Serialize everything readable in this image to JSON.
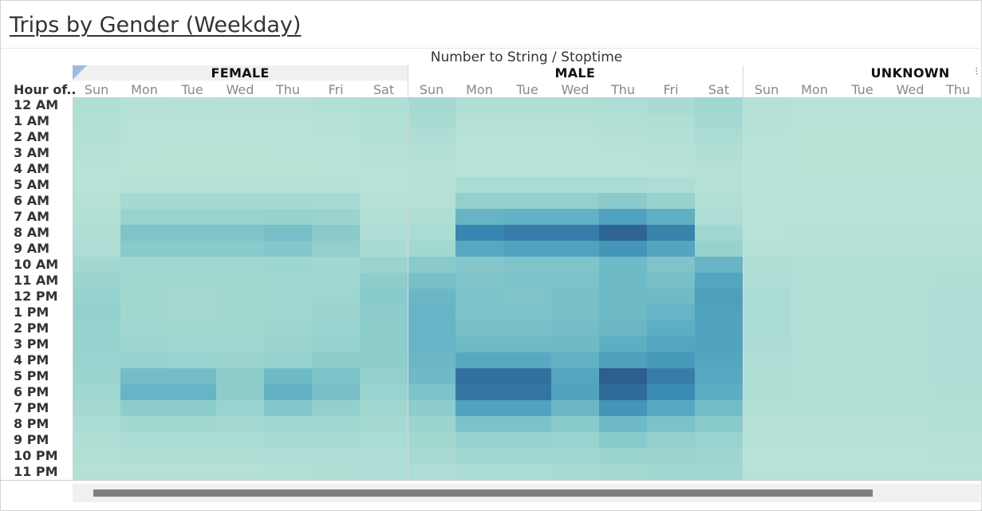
{
  "title": "Trips by Gender (Weekday)",
  "super_header": "Number to String / Stoptime",
  "row_header": "Hour of..",
  "colors": {
    "low": "#bce4d8",
    "high": "#2b5a8a"
  },
  "chart_data": {
    "type": "heatmap",
    "title": "Trips by Gender (Weekday)",
    "column_header": "Number to String / Stoptime",
    "row_header": "Hour of..",
    "groups": [
      {
        "name": "FEMALE",
        "days": [
          "Sun",
          "Mon",
          "Tue",
          "Wed",
          "Thu",
          "Fri",
          "Sat"
        ]
      },
      {
        "name": "MALE",
        "days": [
          "Sun",
          "Mon",
          "Tue",
          "Wed",
          "Thu",
          "Fri",
          "Sat"
        ]
      },
      {
        "name": "UNKNOWN",
        "days": [
          "Sun",
          "Mon",
          "Tue",
          "Wed",
          "Thu"
        ]
      }
    ],
    "hours": [
      "12 AM",
      "1 AM",
      "2 AM",
      "3 AM",
      "4 AM",
      "5 AM",
      "6 AM",
      "7 AM",
      "8 AM",
      "9 AM",
      "10 AM",
      "11 AM",
      "12 PM",
      "1 PM",
      "2 PM",
      "3 PM",
      "4 PM",
      "5 PM",
      "6 PM",
      "7 PM",
      "8 PM",
      "9 PM",
      "10 PM",
      "11 PM"
    ],
    "color_scale": {
      "low": "#bce4d8",
      "high": "#2b5a8a"
    },
    "values": [
      [
        0.1,
        0.06,
        0.05,
        0.06,
        0.06,
        0.07,
        0.1,
        0.18,
        0.1,
        0.1,
        0.1,
        0.12,
        0.15,
        0.22,
        0.06,
        0.03,
        0.03,
        0.03,
        0.03
      ],
      [
        0.08,
        0.04,
        0.03,
        0.03,
        0.04,
        0.05,
        0.08,
        0.15,
        0.06,
        0.06,
        0.06,
        0.08,
        0.1,
        0.18,
        0.05,
        0.02,
        0.02,
        0.02,
        0.02
      ],
      [
        0.07,
        0.03,
        0.02,
        0.02,
        0.03,
        0.04,
        0.07,
        0.12,
        0.04,
        0.04,
        0.04,
        0.06,
        0.07,
        0.14,
        0.04,
        0.02,
        0.02,
        0.02,
        0.02
      ],
      [
        0.05,
        0.02,
        0.02,
        0.02,
        0.02,
        0.03,
        0.05,
        0.08,
        0.03,
        0.03,
        0.03,
        0.04,
        0.05,
        0.1,
        0.03,
        0.02,
        0.02,
        0.02,
        0.02
      ],
      [
        0.04,
        0.02,
        0.02,
        0.02,
        0.02,
        0.02,
        0.04,
        0.05,
        0.03,
        0.03,
        0.03,
        0.03,
        0.04,
        0.06,
        0.03,
        0.02,
        0.02,
        0.02,
        0.02
      ],
      [
        0.04,
        0.06,
        0.06,
        0.06,
        0.06,
        0.06,
        0.04,
        0.05,
        0.14,
        0.14,
        0.14,
        0.14,
        0.12,
        0.06,
        0.03,
        0.03,
        0.03,
        0.03,
        0.03
      ],
      [
        0.05,
        0.18,
        0.18,
        0.18,
        0.18,
        0.16,
        0.05,
        0.06,
        0.32,
        0.32,
        0.32,
        0.35,
        0.3,
        0.08,
        0.03,
        0.04,
        0.04,
        0.04,
        0.04
      ],
      [
        0.07,
        0.28,
        0.28,
        0.28,
        0.3,
        0.26,
        0.07,
        0.1,
        0.52,
        0.54,
        0.54,
        0.64,
        0.55,
        0.12,
        0.03,
        0.04,
        0.04,
        0.04,
        0.04
      ],
      [
        0.1,
        0.4,
        0.4,
        0.4,
        0.44,
        0.36,
        0.12,
        0.14,
        0.8,
        0.84,
        0.84,
        0.95,
        0.82,
        0.22,
        0.04,
        0.05,
        0.05,
        0.05,
        0.05
      ],
      [
        0.12,
        0.36,
        0.36,
        0.36,
        0.38,
        0.32,
        0.15,
        0.2,
        0.6,
        0.64,
        0.64,
        0.72,
        0.62,
        0.3,
        0.06,
        0.06,
        0.06,
        0.06,
        0.06
      ],
      [
        0.2,
        0.22,
        0.22,
        0.22,
        0.24,
        0.22,
        0.26,
        0.36,
        0.38,
        0.4,
        0.4,
        0.48,
        0.4,
        0.52,
        0.1,
        0.07,
        0.07,
        0.07,
        0.08
      ],
      [
        0.26,
        0.2,
        0.2,
        0.2,
        0.22,
        0.22,
        0.34,
        0.44,
        0.4,
        0.42,
        0.42,
        0.48,
        0.44,
        0.62,
        0.12,
        0.08,
        0.08,
        0.08,
        0.1
      ],
      [
        0.3,
        0.2,
        0.18,
        0.2,
        0.22,
        0.24,
        0.36,
        0.5,
        0.42,
        0.4,
        0.44,
        0.48,
        0.48,
        0.66,
        0.14,
        0.09,
        0.09,
        0.09,
        0.12
      ],
      [
        0.32,
        0.2,
        0.18,
        0.2,
        0.22,
        0.26,
        0.34,
        0.52,
        0.42,
        0.42,
        0.44,
        0.48,
        0.52,
        0.64,
        0.14,
        0.09,
        0.09,
        0.09,
        0.12
      ],
      [
        0.3,
        0.22,
        0.2,
        0.2,
        0.24,
        0.28,
        0.34,
        0.52,
        0.44,
        0.44,
        0.46,
        0.5,
        0.56,
        0.64,
        0.14,
        0.09,
        0.09,
        0.09,
        0.12
      ],
      [
        0.3,
        0.24,
        0.22,
        0.22,
        0.26,
        0.3,
        0.34,
        0.52,
        0.48,
        0.48,
        0.48,
        0.56,
        0.62,
        0.64,
        0.13,
        0.09,
        0.09,
        0.09,
        0.12
      ],
      [
        0.28,
        0.3,
        0.28,
        0.26,
        0.3,
        0.34,
        0.34,
        0.5,
        0.6,
        0.6,
        0.54,
        0.66,
        0.7,
        0.62,
        0.12,
        0.09,
        0.09,
        0.09,
        0.12
      ],
      [
        0.26,
        0.46,
        0.46,
        0.34,
        0.48,
        0.42,
        0.32,
        0.48,
        0.9,
        0.9,
        0.62,
        0.98,
        0.84,
        0.6,
        0.11,
        0.09,
        0.09,
        0.09,
        0.12
      ],
      [
        0.22,
        0.52,
        0.52,
        0.34,
        0.54,
        0.44,
        0.28,
        0.42,
        0.88,
        0.88,
        0.64,
        0.92,
        0.78,
        0.56,
        0.1,
        0.08,
        0.08,
        0.08,
        0.1
      ],
      [
        0.18,
        0.34,
        0.34,
        0.28,
        0.38,
        0.32,
        0.22,
        0.34,
        0.64,
        0.64,
        0.5,
        0.72,
        0.6,
        0.46,
        0.08,
        0.07,
        0.07,
        0.07,
        0.08
      ],
      [
        0.14,
        0.2,
        0.2,
        0.18,
        0.22,
        0.22,
        0.18,
        0.26,
        0.42,
        0.42,
        0.36,
        0.48,
        0.42,
        0.36,
        0.06,
        0.06,
        0.06,
        0.06,
        0.07
      ],
      [
        0.1,
        0.14,
        0.14,
        0.14,
        0.16,
        0.16,
        0.14,
        0.2,
        0.3,
        0.3,
        0.28,
        0.36,
        0.32,
        0.28,
        0.05,
        0.05,
        0.05,
        0.05,
        0.06
      ],
      [
        0.08,
        0.1,
        0.1,
        0.1,
        0.12,
        0.12,
        0.12,
        0.16,
        0.22,
        0.22,
        0.22,
        0.26,
        0.26,
        0.24,
        0.04,
        0.04,
        0.04,
        0.04,
        0.05
      ],
      [
        0.06,
        0.06,
        0.06,
        0.06,
        0.08,
        0.1,
        0.12,
        0.12,
        0.14,
        0.14,
        0.16,
        0.18,
        0.22,
        0.22,
        0.03,
        0.03,
        0.03,
        0.03,
        0.04
      ]
    ]
  },
  "scrollbar": {
    "label": ""
  }
}
